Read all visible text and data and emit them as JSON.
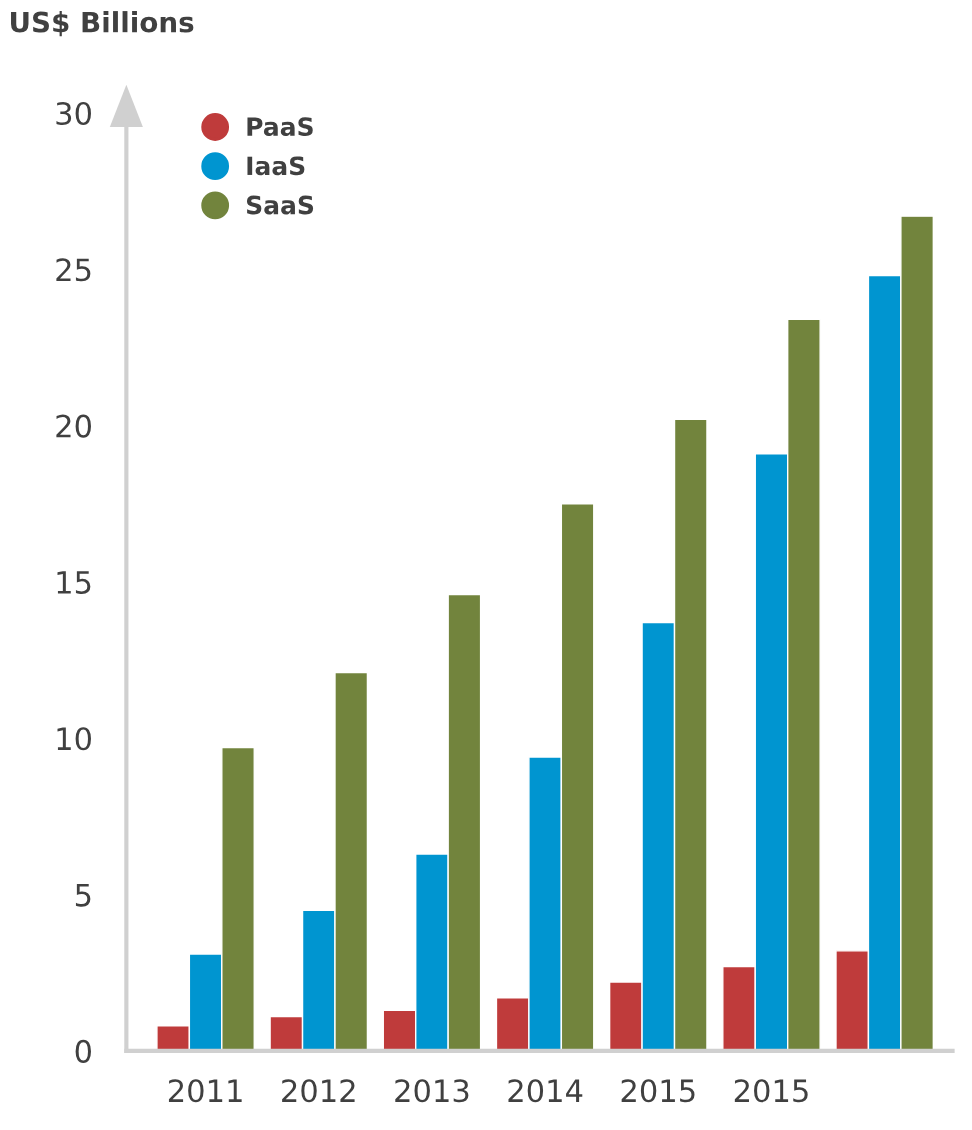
{
  "chart_data": {
    "type": "bar",
    "ylabel": "US$ Billions",
    "categories": [
      "2011",
      "2012",
      "2013",
      "2014",
      "2015",
      "2015",
      null
    ],
    "series": [
      {
        "name": "PaaS",
        "color": "#bf3b3b",
        "values": [
          0.8,
          1.1,
          1.3,
          1.7,
          2.2,
          2.7,
          3.2
        ]
      },
      {
        "name": "IaaS",
        "color": "#0095d0",
        "values": [
          3.1,
          4.5,
          6.3,
          9.4,
          13.7,
          19.1,
          24.8
        ]
      },
      {
        "name": "SaaS",
        "color": "#72843d",
        "values": [
          9.7,
          12.1,
          14.6,
          17.5,
          20.2,
          23.4,
          26.7
        ]
      }
    ],
    "ylim": [
      0,
      30
    ],
    "yticks": [
      0,
      5,
      10,
      15,
      20,
      25,
      30
    ],
    "grid": false,
    "legend": "top left"
  }
}
